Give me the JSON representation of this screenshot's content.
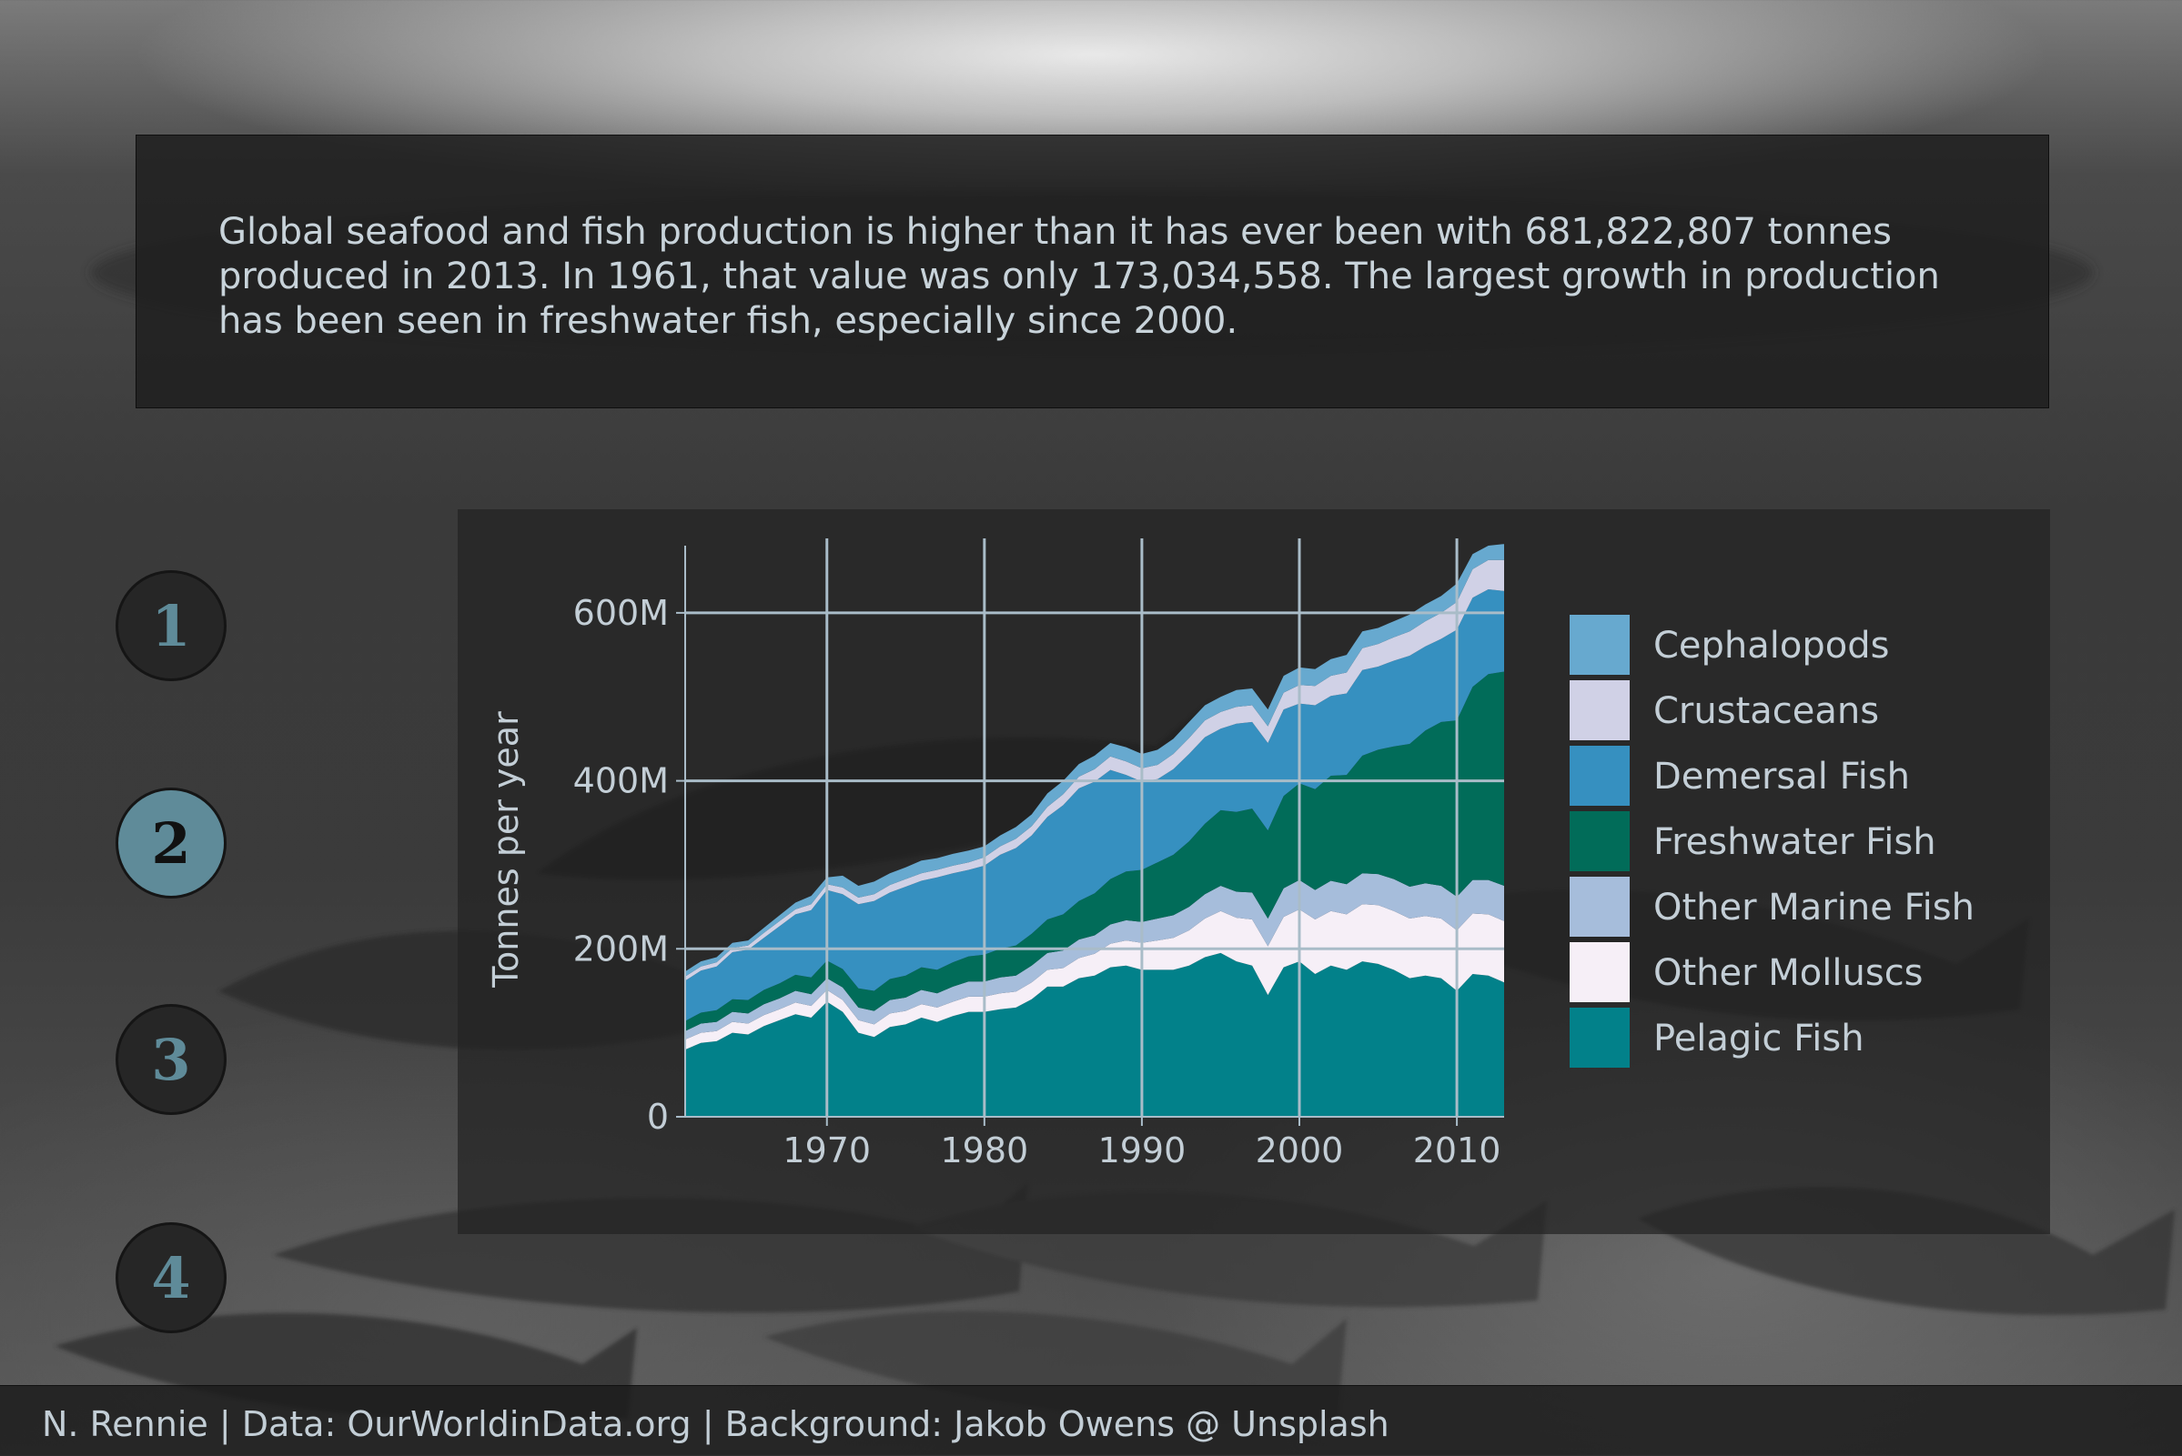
{
  "intro": {
    "text": "Global seafood and fish production is higher than it has ever been with 681,822,807 tonnes produced in 2013. In 1961, that value was only 173,034,558. The largest growth in production has been seen in freshwater fish, especially since 2000."
  },
  "steps": [
    {
      "label": "1",
      "active": false
    },
    {
      "label": "2",
      "active": true
    },
    {
      "label": "3",
      "active": false
    },
    {
      "label": "4",
      "active": false
    }
  ],
  "caption": "N. Rennie | Data: OurWorldinData.org | Background: Jakob Owens @ Unsplash",
  "colors": {
    "Cephalopods": "#67a9cf",
    "Crustaceans": "#d0d1e6",
    "Demersal Fish": "#3690c0",
    "Freshwater Fish": "#016c59",
    "Other Marine Fish": "#a6bddb",
    "Other Molluscs": "#f6eff7",
    "Pelagic Fish": "#02818a",
    "grid": "#a9bcc8",
    "text": "#c3ced6"
  },
  "chart_data": {
    "type": "area",
    "stacked": true,
    "xlabel": "",
    "ylabel": "Tonnes per year",
    "xlim": [
      1961,
      2013
    ],
    "ylim": [
      0,
      680000000
    ],
    "xticks": [
      {
        "v": 1970,
        "label": "1970"
      },
      {
        "v": 1980,
        "label": "1980"
      },
      {
        "v": 1990,
        "label": "1990"
      },
      {
        "v": 2000,
        "label": "2000"
      },
      {
        "v": 2010,
        "label": "2010"
      }
    ],
    "yticks": [
      {
        "v": 0,
        "label": "0"
      },
      {
        "v": 200000000,
        "label": "200M"
      },
      {
        "v": 400000000,
        "label": "400M"
      },
      {
        "v": 600000000,
        "label": "600M"
      }
    ],
    "grid": true,
    "legend_position": "right",
    "stack_order_bottom_to_top": [
      "Pelagic Fish",
      "Other Molluscs",
      "Other Marine Fish",
      "Freshwater Fish",
      "Demersal Fish",
      "Crustaceans",
      "Cephalopods"
    ],
    "legend_order": [
      "Cephalopods",
      "Crustaceans",
      "Demersal Fish",
      "Freshwater Fish",
      "Other Marine Fish",
      "Other Molluscs",
      "Pelagic Fish"
    ],
    "x": [
      1961,
      1962,
      1963,
      1964,
      1965,
      1966,
      1967,
      1968,
      1969,
      1970,
      1971,
      1972,
      1973,
      1974,
      1975,
      1976,
      1977,
      1978,
      1979,
      1980,
      1981,
      1982,
      1983,
      1984,
      1985,
      1986,
      1987,
      1988,
      1989,
      1990,
      1991,
      1992,
      1993,
      1994,
      1995,
      1996,
      1997,
      1998,
      1999,
      2000,
      2001,
      2002,
      2003,
      2004,
      2005,
      2006,
      2007,
      2008,
      2009,
      2010,
      2011,
      2012,
      2013
    ],
    "totals": [
      173,
      185,
      190,
      207,
      210,
      225,
      240,
      255,
      263,
      285,
      287,
      275,
      280,
      290,
      297,
      305,
      308,
      313,
      317,
      322,
      335,
      345,
      360,
      385,
      400,
      420,
      430,
      445,
      440,
      432,
      437,
      450,
      470,
      490,
      500,
      508,
      510,
      485,
      525,
      535,
      533,
      545,
      550,
      578,
      582,
      590,
      598,
      610,
      620,
      635,
      670,
      680,
      682
    ],
    "series": [
      {
        "name": "Pelagic Fish",
        "values": [
          80,
          88,
          90,
          100,
          98,
          108,
          115,
          122,
          118,
          137,
          125,
          100,
          95,
          107,
          110,
          118,
          113,
          120,
          125,
          125,
          128,
          130,
          140,
          155,
          155,
          165,
          168,
          178,
          180,
          175,
          175,
          175,
          180,
          190,
          195,
          185,
          180,
          145,
          178,
          185,
          170,
          180,
          175,
          185,
          182,
          175,
          165,
          168,
          165,
          150,
          170,
          168,
          160
        ]
      },
      {
        "name": "Other Molluscs",
        "values": [
          12,
          12,
          12,
          13,
          13,
          13,
          13,
          14,
          14,
          14,
          14,
          15,
          15,
          16,
          16,
          16,
          17,
          17,
          18,
          18,
          19,
          19,
          20,
          20,
          22,
          24,
          26,
          28,
          30,
          32,
          35,
          38,
          42,
          46,
          50,
          52,
          55,
          58,
          60,
          62,
          65,
          65,
          66,
          68,
          70,
          70,
          71,
          71,
          71,
          72,
          72,
          73,
          73
        ]
      },
      {
        "name": "Other Marine Fish",
        "values": [
          10,
          11,
          11,
          12,
          12,
          13,
          13,
          14,
          14,
          14,
          15,
          15,
          16,
          16,
          16,
          17,
          17,
          18,
          18,
          18,
          19,
          19,
          20,
          20,
          21,
          22,
          22,
          23,
          24,
          25,
          26,
          27,
          28,
          29,
          30,
          31,
          32,
          33,
          34,
          35,
          35,
          36,
          36,
          37,
          37,
          38,
          38,
          39,
          39,
          40,
          40,
          41,
          42
        ]
      },
      {
        "name": "Freshwater Fish",
        "values": [
          12,
          13,
          14,
          15,
          16,
          17,
          18,
          19,
          20,
          21,
          22,
          23,
          24,
          25,
          26,
          27,
          28,
          29,
          30,
          32,
          34,
          36,
          38,
          40,
          43,
          46,
          50,
          54,
          58,
          62,
          67,
          72,
          78,
          84,
          90,
          95,
          100,
          105,
          110,
          115,
          120,
          125,
          130,
          140,
          148,
          158,
          170,
          182,
          195,
          210,
          230,
          245,
          255
        ]
      },
      {
        "name": "Demersal Fish",
        "values": [
          48,
          50,
          52,
          56,
          60,
          62,
          68,
          72,
          80,
          84,
          89,
          100,
          107,
          103,
          106,
          103,
          110,
          106,
          103,
          106,
          112,
          116,
          117,
          122,
          130,
          134,
          133,
          130,
          115,
          105,
          99,
          102,
          104,
          103,
          97,
          105,
          103,
          104,
          103,
          95,
          100,
          95,
          97,
          102,
          99,
          102,
          105,
          100,
          99,
          108,
          106,
          101,
          96
        ]
      },
      {
        "name": "Crustaceans",
        "values": [
          5,
          5,
          5,
          5,
          5,
          6,
          6,
          6,
          7,
          7,
          8,
          8,
          8,
          9,
          9,
          9,
          9,
          9,
          9,
          10,
          10,
          11,
          11,
          12,
          13,
          14,
          15,
          16,
          16,
          16,
          17,
          18,
          19,
          20,
          20,
          20,
          20,
          20,
          20,
          22,
          23,
          24,
          25,
          26,
          27,
          28,
          29,
          30,
          31,
          33,
          34,
          35,
          37
        ]
      },
      {
        "name": "Cephalopods",
        "values": [
          6,
          6,
          6,
          6,
          6,
          6,
          7,
          8,
          10,
          8,
          14,
          14,
          15,
          14,
          14,
          15,
          14,
          14,
          14,
          13,
          13,
          14,
          14,
          16,
          16,
          15,
          16,
          16,
          17,
          17,
          18,
          18,
          19,
          18,
          18,
          20,
          20,
          20,
          20,
          21,
          20,
          20,
          21,
          20,
          19,
          19,
          20,
          20,
          20,
          22,
          18,
          17,
          19
        ]
      }
    ],
    "value_unit_scale": 1000000
  }
}
